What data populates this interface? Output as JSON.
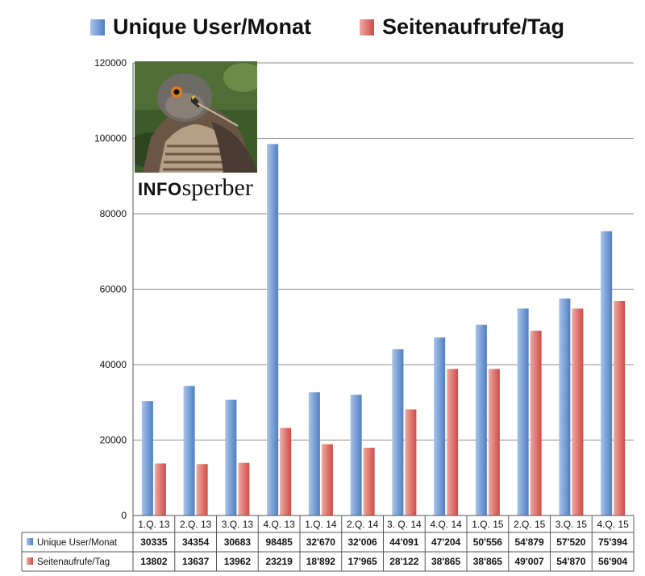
{
  "legend": {
    "items": [
      {
        "label": "Unique User/Monat",
        "color": "#5b8fd0"
      },
      {
        "label": "Seitenaufrufe/Tag",
        "color": "#d9534f"
      }
    ]
  },
  "logo": {
    "text_bold": "INFO",
    "text_rest": "sperber",
    "photo_icon": "sparrowhawk-photo-icon"
  },
  "colors": {
    "blue_light": "#a9c3e8",
    "blue_dark": "#4f7fc4",
    "red_light": "#f0a9a3",
    "red_dark": "#cf4b45",
    "grid": "#8c8c8c",
    "axis": "#555555"
  },
  "chart_data": {
    "type": "bar",
    "title": "",
    "xlabel": "",
    "ylabel": "",
    "ylim": [
      0,
      120000
    ],
    "yticks": [
      "0",
      "20000",
      "40000",
      "60000",
      "80000",
      "100000",
      "120000"
    ],
    "categories": [
      "1.Q. 13",
      "2.Q. 13",
      "3.Q. 13",
      "4.Q. 13",
      "1.Q.  14",
      "2.Q. 14",
      "3. Q. 14",
      "4.Q. 14",
      "1.Q. 15",
      "2.Q. 15",
      "3.Q. 15",
      "4.Q. 15"
    ],
    "grid": true,
    "legend_position": "top",
    "series": [
      {
        "name": "Unique User/Monat",
        "values": [
          30335,
          34354,
          30683,
          98485,
          32670,
          32006,
          44091,
          47204,
          50556,
          54879,
          57520,
          75394
        ],
        "labels": [
          "30335",
          "34354",
          "30683",
          "98485",
          "32'670",
          "32'006",
          "44'091",
          "47'204",
          "50'556",
          "54'879",
          "57'520",
          "75'394"
        ]
      },
      {
        "name": "Seitenaufrufe/Tag",
        "values": [
          13802,
          13637,
          13962,
          23219,
          18892,
          17965,
          28122,
          38865,
          38865,
          49007,
          54870,
          56904
        ],
        "labels": [
          "13802",
          "13637",
          "13962",
          "23219",
          "18'892",
          "17'965",
          "28'122",
          "38'865",
          "38'865",
          "49'007",
          "54'870",
          "56'904"
        ]
      }
    ]
  }
}
